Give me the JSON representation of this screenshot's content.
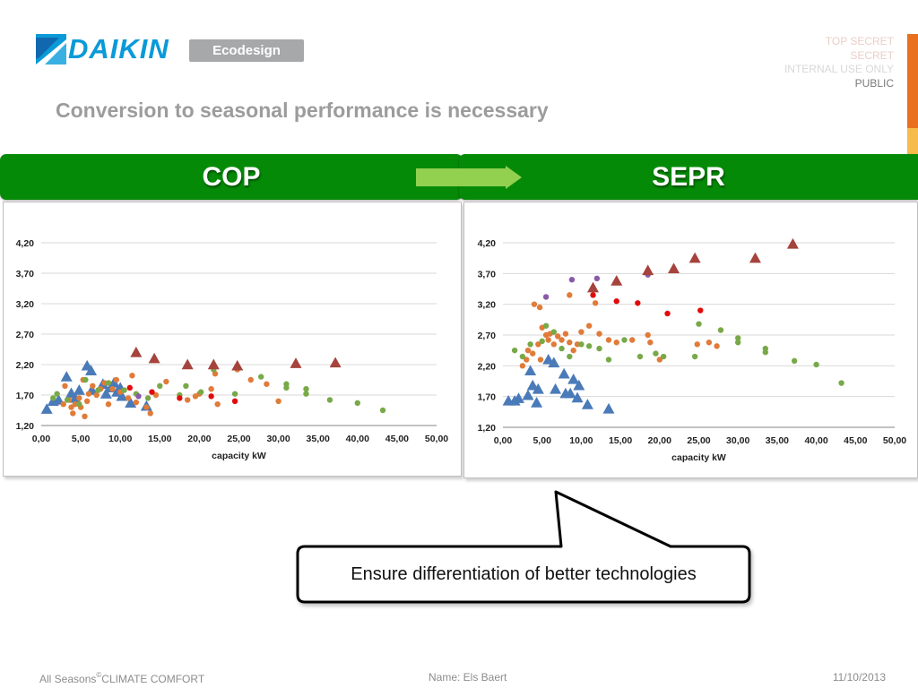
{
  "header": {
    "brand": "DAIKIN",
    "badge": "Ecodesign",
    "classification": [
      "TOP SECRET",
      "SECRET",
      "INTERNAL USE ONLY",
      "PUBLIC"
    ],
    "title": "Conversion to seasonal performance is necessary"
  },
  "colors": {
    "brand_blue": "#0a9ad8",
    "banner_green": "#058a08",
    "arrow_green": "#92d050",
    "series": [
      "#4a7ab8",
      "#e07b39",
      "#78a948",
      "#e20b0b",
      "#8a5aa8",
      "#a5433c"
    ]
  },
  "banners": {
    "left": "COP",
    "right": "SEPR"
  },
  "callout": {
    "text": "Ensure differentiation of better technologies"
  },
  "footer": {
    "left_prefix": "All Seasons",
    "left_sup": "©",
    "left_suffix": "CLIMATE COMFORT",
    "middle": "Name:  Els Baert",
    "right": "11/10/2013"
  },
  "chart_data": [
    {
      "type": "scatter",
      "title": "",
      "xlabel": "capacity kW",
      "ylabel": "",
      "xlim": [
        0,
        50
      ],
      "ylim": [
        1.2,
        4.2
      ],
      "x_ticks": [
        "0,00",
        "5,00",
        "10,00",
        "15,00",
        "20,00",
        "25,00",
        "30,00",
        "35,00",
        "40,00",
        "45,00",
        "50,00"
      ],
      "y_ticks": [
        "1,20",
        "1,70",
        "2,20",
        "2,70",
        "3,20",
        "3,70",
        "4,20"
      ],
      "grid": "horizontal",
      "legend": "none",
      "series": [
        {
          "marker": "triangle",
          "color": "#4a7ab8",
          "points": [
            [
              0.7,
              1.47
            ],
            [
              1.5,
              1.6
            ],
            [
              2.2,
              1.62
            ],
            [
              3.2,
              2.0
            ],
            [
              3.8,
              1.73
            ],
            [
              4.3,
              1.65
            ],
            [
              4.8,
              1.78
            ],
            [
              5.8,
              2.18
            ],
            [
              6.3,
              2.1
            ],
            [
              6.4,
              1.78
            ],
            [
              7.8,
              1.88
            ],
            [
              8.2,
              1.72
            ],
            [
              8.8,
              1.82
            ],
            [
              9.2,
              1.9
            ],
            [
              9.6,
              1.75
            ],
            [
              10.0,
              1.82
            ],
            [
              10.2,
              1.68
            ],
            [
              11.3,
              1.57
            ],
            [
              13.3,
              1.52
            ]
          ]
        },
        {
          "marker": "circle",
          "color": "#e07b39",
          "points": [
            [
              2.8,
              1.55
            ],
            [
              3.0,
              1.85
            ],
            [
              3.5,
              1.62
            ],
            [
              3.8,
              1.5
            ],
            [
              4.0,
              1.4
            ],
            [
              4.3,
              1.55
            ],
            [
              4.8,
              1.65
            ],
            [
              5.0,
              1.5
            ],
            [
              5.3,
              1.95
            ],
            [
              5.5,
              1.35
            ],
            [
              5.8,
              1.6
            ],
            [
              6.0,
              1.72
            ],
            [
              6.5,
              1.85
            ],
            [
              7.0,
              1.7
            ],
            [
              7.5,
              1.8
            ],
            [
              8.0,
              1.9
            ],
            [
              8.5,
              1.55
            ],
            [
              9.0,
              1.8
            ],
            [
              9.5,
              1.95
            ],
            [
              10.0,
              1.75
            ],
            [
              11.0,
              1.65
            ],
            [
              11.5,
              2.02
            ],
            [
              12.0,
              1.58
            ],
            [
              13.3,
              1.5
            ],
            [
              13.8,
              1.4
            ],
            [
              14.5,
              1.7
            ],
            [
              15.8,
              1.92
            ],
            [
              18.5,
              1.62
            ],
            [
              19.5,
              1.68
            ],
            [
              20.0,
              1.72
            ],
            [
              21.5,
              1.8
            ],
            [
              22.0,
              2.05
            ],
            [
              22.3,
              1.55
            ],
            [
              24.8,
              2.12
            ],
            [
              26.5,
              1.95
            ],
            [
              28.5,
              1.88
            ],
            [
              30.0,
              1.6
            ]
          ]
        },
        {
          "marker": "circle",
          "color": "#78a948",
          "points": [
            [
              1.5,
              1.65
            ],
            [
              2.0,
              1.72
            ],
            [
              3.3,
              1.62
            ],
            [
              4.8,
              1.55
            ],
            [
              5.6,
              1.95
            ],
            [
              7.2,
              1.78
            ],
            [
              8.5,
              1.9
            ],
            [
              10.5,
              1.78
            ],
            [
              12.0,
              1.72
            ],
            [
              13.5,
              1.65
            ],
            [
              15.0,
              1.85
            ],
            [
              17.5,
              1.7
            ],
            [
              18.3,
              1.85
            ],
            [
              20.2,
              1.75
            ],
            [
              21.8,
              2.12
            ],
            [
              24.5,
              1.72
            ],
            [
              27.8,
              2.0
            ],
            [
              31.0,
              1.82
            ],
            [
              31.0,
              1.88
            ],
            [
              33.5,
              1.8
            ],
            [
              33.5,
              1.72
            ],
            [
              36.5,
              1.62
            ],
            [
              40.0,
              1.57
            ],
            [
              43.2,
              1.45
            ]
          ]
        },
        {
          "marker": "circle",
          "color": "#e20b0b",
          "points": [
            [
              11.2,
              1.82
            ],
            [
              14.0,
              1.75
            ],
            [
              17.5,
              1.65
            ],
            [
              21.5,
              1.68
            ],
            [
              24.5,
              1.6
            ]
          ]
        },
        {
          "marker": "circle",
          "color": "#8a5aa8",
          "points": [
            [
              12.3,
              1.68
            ]
          ]
        },
        {
          "marker": "triangle",
          "color": "#a5433c",
          "points": [
            [
              12.0,
              2.4
            ],
            [
              14.3,
              2.3
            ],
            [
              18.5,
              2.2
            ],
            [
              21.8,
              2.2
            ],
            [
              24.8,
              2.18
            ],
            [
              32.2,
              2.22
            ],
            [
              37.2,
              2.23
            ]
          ]
        }
      ]
    },
    {
      "type": "scatter",
      "title": "",
      "xlabel": "capacity kW",
      "ylabel": "",
      "xlim": [
        0,
        50
      ],
      "ylim": [
        1.2,
        4.2
      ],
      "x_ticks": [
        "0,00",
        "5,00",
        "10,00",
        "15,00",
        "20,00",
        "25,00",
        "30,00",
        "35,00",
        "40,00",
        "45,00",
        "50,00"
      ],
      "y_ticks": [
        "1,20",
        "1,70",
        "2,20",
        "2,70",
        "3,20",
        "3,70",
        "4,20"
      ],
      "grid": "horizontal",
      "legend": "none",
      "series": [
        {
          "marker": "triangle",
          "color": "#4a7ab8",
          "points": [
            [
              0.7,
              1.63
            ],
            [
              1.5,
              1.63
            ],
            [
              2.0,
              1.67
            ],
            [
              3.2,
              1.72
            ],
            [
              3.5,
              2.12
            ],
            [
              3.8,
              1.88
            ],
            [
              4.3,
              1.6
            ],
            [
              4.5,
              1.82
            ],
            [
              5.8,
              2.3
            ],
            [
              6.5,
              2.25
            ],
            [
              6.7,
              1.82
            ],
            [
              7.8,
              2.07
            ],
            [
              8.0,
              1.75
            ],
            [
              8.6,
              1.75
            ],
            [
              9.0,
              1.98
            ],
            [
              9.5,
              1.68
            ],
            [
              9.7,
              1.88
            ],
            [
              10.8,
              1.57
            ],
            [
              13.5,
              1.5
            ]
          ]
        },
        {
          "marker": "circle",
          "color": "#e07b39",
          "points": [
            [
              2.5,
              2.2
            ],
            [
              3.0,
              2.3
            ],
            [
              3.2,
              2.45
            ],
            [
              3.8,
              2.4
            ],
            [
              4.0,
              3.2
            ],
            [
              4.5,
              2.55
            ],
            [
              4.7,
              3.15
            ],
            [
              4.8,
              2.3
            ],
            [
              5.0,
              2.82
            ],
            [
              5.5,
              2.7
            ],
            [
              5.8,
              2.62
            ],
            [
              6.0,
              2.72
            ],
            [
              6.5,
              2.55
            ],
            [
              7.0,
              2.68
            ],
            [
              7.5,
              2.62
            ],
            [
              8.0,
              2.72
            ],
            [
              8.5,
              3.35
            ],
            [
              8.5,
              2.58
            ],
            [
              9.0,
              2.45
            ],
            [
              9.5,
              2.55
            ],
            [
              10.0,
              2.75
            ],
            [
              11.0,
              2.85
            ],
            [
              11.8,
              3.22
            ],
            [
              12.3,
              2.72
            ],
            [
              13.5,
              2.62
            ],
            [
              14.5,
              2.58
            ],
            [
              16.5,
              2.62
            ],
            [
              18.5,
              2.7
            ],
            [
              18.8,
              2.58
            ],
            [
              20.0,
              2.3
            ],
            [
              24.8,
              2.55
            ],
            [
              26.3,
              2.58
            ],
            [
              27.3,
              2.52
            ]
          ]
        },
        {
          "marker": "circle",
          "color": "#78a948",
          "points": [
            [
              1.5,
              2.45
            ],
            [
              2.5,
              2.35
            ],
            [
              3.5,
              2.55
            ],
            [
              5.0,
              2.6
            ],
            [
              5.5,
              2.85
            ],
            [
              6.5,
              2.75
            ],
            [
              7.5,
              2.48
            ],
            [
              8.5,
              2.35
            ],
            [
              10.0,
              2.55
            ],
            [
              11.0,
              2.52
            ],
            [
              12.3,
              2.48
            ],
            [
              13.5,
              2.3
            ],
            [
              15.5,
              2.62
            ],
            [
              17.5,
              2.35
            ],
            [
              19.5,
              2.4
            ],
            [
              20.5,
              2.35
            ],
            [
              24.5,
              2.35
            ],
            [
              25.0,
              2.88
            ],
            [
              27.8,
              2.78
            ],
            [
              30.0,
              2.65
            ],
            [
              30.0,
              2.58
            ],
            [
              33.5,
              2.48
            ],
            [
              33.5,
              2.42
            ],
            [
              37.2,
              2.28
            ],
            [
              40.0,
              2.22
            ],
            [
              43.2,
              1.92
            ]
          ]
        },
        {
          "marker": "circle",
          "color": "#e20b0b",
          "points": [
            [
              11.5,
              3.35
            ],
            [
              14.5,
              3.25
            ],
            [
              17.2,
              3.22
            ],
            [
              21.0,
              3.05
            ],
            [
              25.2,
              3.1
            ]
          ]
        },
        {
          "marker": "circle",
          "color": "#8a5aa8",
          "points": [
            [
              5.5,
              3.32
            ],
            [
              8.8,
              3.6
            ],
            [
              12.0,
              3.62
            ],
            [
              18.5,
              3.68
            ]
          ]
        },
        {
          "marker": "triangle",
          "color": "#a5433c",
          "points": [
            [
              11.5,
              3.47
            ],
            [
              14.5,
              3.58
            ],
            [
              18.5,
              3.75
            ],
            [
              21.8,
              3.78
            ],
            [
              24.5,
              3.95
            ],
            [
              32.2,
              3.95
            ],
            [
              37.0,
              4.18
            ]
          ]
        }
      ]
    }
  ]
}
